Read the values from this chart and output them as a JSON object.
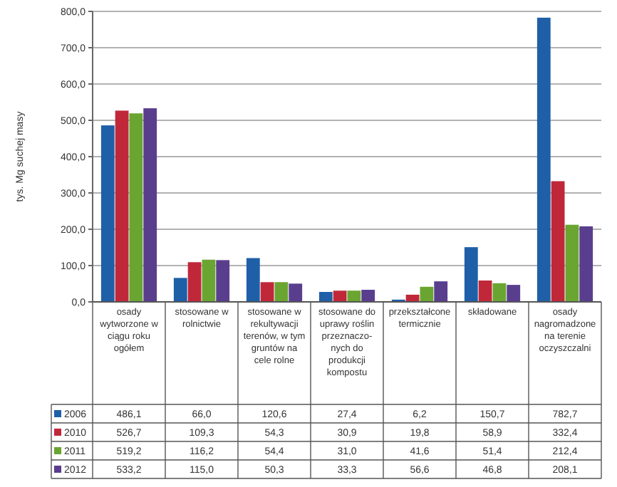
{
  "chart_data": {
    "type": "bar",
    "ylabel": "tys. Mg suchej masy",
    "categories": [
      "osady wytworzone w ciągu roku ogółem",
      "stosowane w rolnictwie",
      "stosowane w rekultywacji terenów, w tym gruntów na cele rolne",
      "stosowane do uprawy roślin przeznaczo-nych do produkcji kompostu",
      "przekształcone termicznie",
      "składowane",
      "osady nagromadzone na terenie oczyszczalni"
    ],
    "series": [
      {
        "name": "2006",
        "color": "#1f5fa8",
        "values": [
          486.1,
          66.0,
          120.6,
          27.4,
          6.2,
          150.7,
          782.7
        ],
        "value_labels": [
          "486,1",
          "66,0",
          "120,6",
          "27,4",
          "6,2",
          "150,7",
          "782,7"
        ]
      },
      {
        "name": "2010",
        "color": "#c0283a",
        "values": [
          526.7,
          109.3,
          54.3,
          30.9,
          19.8,
          58.9,
          332.4
        ],
        "value_labels": [
          "526,7",
          "109,3",
          "54,3",
          "30,9",
          "19,8",
          "58,9",
          "332,4"
        ]
      },
      {
        "name": "2011",
        "color": "#6aa532",
        "values": [
          519.2,
          116.2,
          54.4,
          31.0,
          41.6,
          51.4,
          212.4
        ],
        "value_labels": [
          "519,2",
          "116,2",
          "54,4",
          "31,0",
          "41,6",
          "51,4",
          "212,4"
        ]
      },
      {
        "name": "2012",
        "color": "#5a3e8e",
        "values": [
          533.2,
          115.0,
          50.3,
          33.3,
          56.6,
          46.8,
          208.1
        ],
        "value_labels": [
          "533,2",
          "115,0",
          "50,3",
          "33,3",
          "56,6",
          "46,8",
          "208,1"
        ]
      }
    ],
    "ylim": [
      0,
      800
    ],
    "yticks": [
      {
        "value": 0,
        "label": "0,0"
      },
      {
        "value": 100,
        "label": "100,0"
      },
      {
        "value": 200,
        "label": "200,0"
      },
      {
        "value": 300,
        "label": "300,0"
      },
      {
        "value": 400,
        "label": "400,0"
      },
      {
        "value": 500,
        "label": "500,0"
      },
      {
        "value": 600,
        "label": "600,0"
      },
      {
        "value": 700,
        "label": "700,0"
      },
      {
        "value": 800,
        "label": "800,0"
      }
    ],
    "grid": "y",
    "legend": "bottom left"
  }
}
